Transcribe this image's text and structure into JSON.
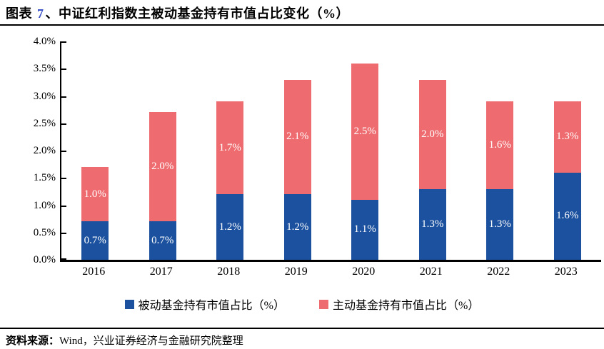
{
  "header": {
    "title_prefix": "图表 ",
    "figure_number": "7",
    "title_suffix": "、中证红利指数主被动基金持有市值占比变化（%）"
  },
  "chart_data": {
    "type": "bar",
    "stacked": true,
    "title": "中证红利指数主被动基金持有市值占比变化（%）",
    "categories": [
      "2016",
      "2017",
      "2018",
      "2019",
      "2020",
      "2021",
      "2022",
      "2023"
    ],
    "series": [
      {
        "name": "被动基金持有市值占比（%）",
        "color": "#1B519E",
        "values": [
          0.7,
          0.7,
          1.2,
          1.2,
          1.1,
          1.3,
          1.3,
          1.6
        ]
      },
      {
        "name": "主动基金持有市值占比（%）",
        "color": "#EE6C6F",
        "values": [
          1.0,
          2.0,
          1.7,
          2.1,
          2.5,
          2.0,
          1.6,
          1.3
        ]
      }
    ],
    "xlabel": "",
    "ylabel": "",
    "ylim": [
      0,
      4.0
    ],
    "yticks": [
      "4.0%",
      "3.5%",
      "3.0%",
      "2.5%",
      "2.0%",
      "1.5%",
      "1.0%",
      "0.5%",
      "0.0%"
    ],
    "grid": false,
    "legend_position": "bottom",
    "data_labels": "white, centered in each segment, format X.X%"
  },
  "footer": {
    "source_label": "资料来源：",
    "source_text": "Wind，兴业证券经济与金融研究院整理"
  },
  "colors": {
    "passive_blue": "#1B519E",
    "active_red": "#EE6C6F",
    "figure_number_blue": "#3A50C8",
    "axis_black": "#000000",
    "background": "#FFFFFF"
  }
}
